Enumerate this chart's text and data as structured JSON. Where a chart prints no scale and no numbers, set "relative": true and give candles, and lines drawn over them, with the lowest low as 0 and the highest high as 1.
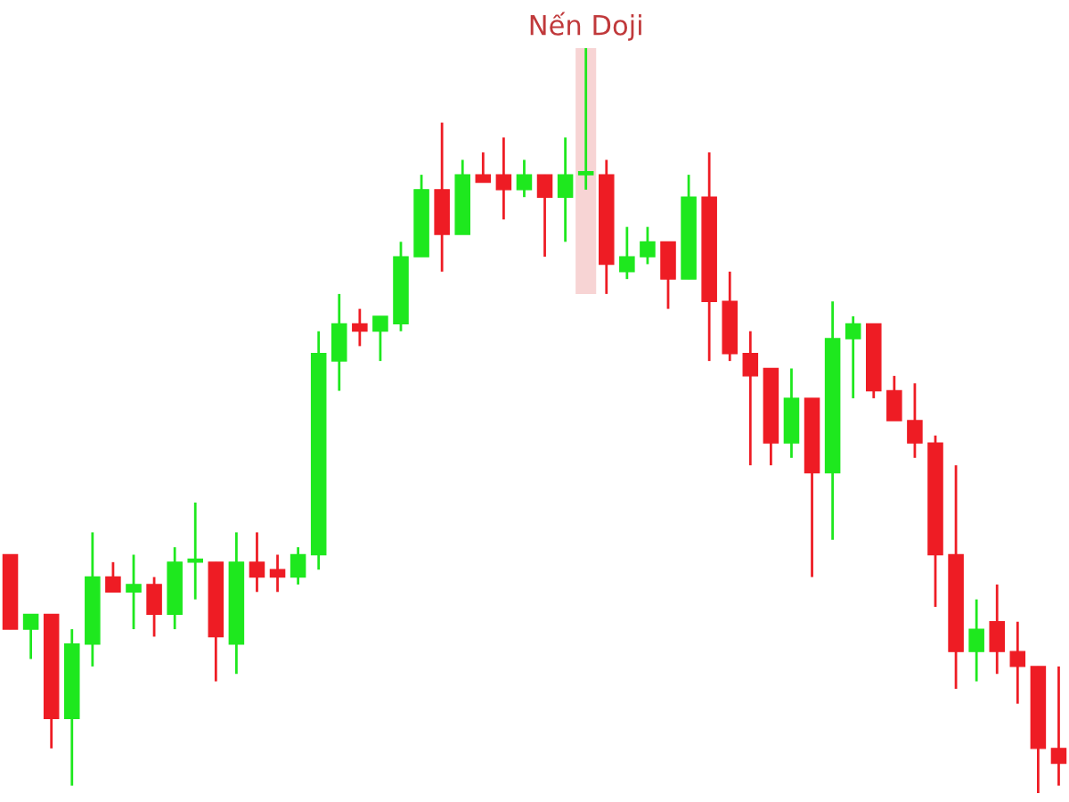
{
  "chart_data": {
    "type": "candlestick",
    "relative": true,
    "categories": [
      null,
      null,
      null,
      null,
      null,
      null,
      null,
      null,
      null,
      null,
      null,
      null,
      null,
      null,
      null,
      null,
      null,
      null,
      null,
      null,
      null,
      null,
      null,
      null,
      null,
      null,
      null,
      null,
      null,
      null,
      null,
      null,
      null,
      null,
      null,
      null,
      null,
      null,
      null,
      null,
      null,
      null,
      null,
      null,
      null,
      null,
      null,
      null,
      null,
      null,
      null,
      null
    ],
    "ohlc": [
      [
        0.32,
        0.32,
        0.22,
        0.22
      ],
      [
        0.22,
        0.24,
        0.18,
        0.24
      ],
      [
        0.24,
        0.24,
        0.06,
        0.1
      ],
      [
        0.1,
        0.22,
        0.01,
        0.2
      ],
      [
        0.2,
        0.35,
        0.17,
        0.29
      ],
      [
        0.29,
        0.31,
        0.27,
        0.27
      ],
      [
        0.27,
        0.32,
        0.22,
        0.28
      ],
      [
        0.28,
        0.29,
        0.21,
        0.24
      ],
      [
        0.24,
        0.33,
        0.22,
        0.31
      ],
      [
        0.31,
        0.39,
        0.26,
        0.31
      ],
      [
        0.31,
        0.31,
        0.15,
        0.21
      ],
      [
        0.2,
        0.35,
        0.16,
        0.31
      ],
      [
        0.31,
        0.35,
        0.27,
        0.29
      ],
      [
        0.3,
        0.32,
        0.27,
        0.29
      ],
      [
        0.29,
        0.33,
        0.28,
        0.32
      ],
      [
        0.32,
        0.62,
        0.3,
        0.59
      ],
      [
        0.58,
        0.67,
        0.54,
        0.63
      ],
      [
        0.63,
        0.65,
        0.6,
        0.62
      ],
      [
        0.62,
        0.64,
        0.58,
        0.64
      ],
      [
        0.63,
        0.74,
        0.62,
        0.72
      ],
      [
        0.72,
        0.83,
        0.72,
        0.81
      ],
      [
        0.81,
        0.9,
        0.7,
        0.75
      ],
      [
        0.75,
        0.85,
        0.75,
        0.83
      ],
      [
        0.83,
        0.86,
        0.82,
        0.82
      ],
      [
        0.83,
        0.88,
        0.77,
        0.81
      ],
      [
        0.81,
        0.85,
        0.8,
        0.83
      ],
      [
        0.83,
        0.83,
        0.72,
        0.8
      ],
      [
        0.8,
        0.88,
        0.74,
        0.83
      ],
      [
        0.83,
        1.0,
        0.81,
        0.83
      ],
      [
        0.83,
        0.85,
        0.67,
        0.71
      ],
      [
        0.7,
        0.76,
        0.69,
        0.72
      ],
      [
        0.72,
        0.76,
        0.71,
        0.74
      ],
      [
        0.74,
        0.74,
        0.65,
        0.69
      ],
      [
        0.69,
        0.83,
        0.69,
        0.8
      ],
      [
        0.8,
        0.86,
        0.58,
        0.66
      ],
      [
        0.66,
        0.7,
        0.58,
        0.59
      ],
      [
        0.59,
        0.62,
        0.44,
        0.56
      ],
      [
        0.57,
        0.57,
        0.44,
        0.47
      ],
      [
        0.47,
        0.57,
        0.45,
        0.53
      ],
      [
        0.53,
        0.53,
        0.29,
        0.43
      ],
      [
        0.43,
        0.66,
        0.34,
        0.61
      ],
      [
        0.61,
        0.64,
        0.53,
        0.63
      ],
      [
        0.63,
        0.63,
        0.53,
        0.54
      ],
      [
        0.54,
        0.56,
        0.5,
        0.5
      ],
      [
        0.5,
        0.55,
        0.45,
        0.47
      ],
      [
        0.47,
        0.48,
        0.25,
        0.32
      ],
      [
        0.32,
        0.44,
        0.14,
        0.19
      ],
      [
        0.19,
        0.26,
        0.15,
        0.22
      ],
      [
        0.23,
        0.28,
        0.16,
        0.19
      ],
      [
        0.19,
        0.23,
        0.12,
        0.17
      ],
      [
        0.17,
        0.17,
        0.0,
        0.06
      ],
      [
        0.06,
        0.17,
        0.01,
        0.04
      ]
    ],
    "colors": [
      "#ee1c24",
      "#1ee81e",
      "#ee1c24",
      "#1ee81e",
      "#1ee81e",
      "#ee1c24",
      "#1ee81e",
      "#ee1c24",
      "#1ee81e",
      "#1ee81e",
      "#ee1c24",
      "#1ee81e",
      "#ee1c24",
      "#ee1c24",
      "#1ee81e",
      "#1ee81e",
      "#1ee81e",
      "#ee1c24",
      "#1ee81e",
      "#1ee81e",
      "#1ee81e",
      "#ee1c24",
      "#1ee81e",
      "#ee1c24",
      "#ee1c24",
      "#1ee81e",
      "#ee1c24",
      "#1ee81e",
      "#1ee81e",
      "#ee1c24",
      "#1ee81e",
      "#1ee81e",
      "#ee1c24",
      "#1ee81e",
      "#ee1c24",
      "#ee1c24",
      "#ee1c24",
      "#ee1c24",
      "#1ee81e",
      "#ee1c24",
      "#1ee81e",
      "#1ee81e",
      "#ee1c24",
      "#ee1c24",
      "#ee1c24",
      "#ee1c24",
      "#ee1c24",
      "#1ee81e",
      "#ee1c24",
      "#ee1c24",
      "#ee1c24",
      "#ee1c24"
    ],
    "annotations": [
      "Nến Doji"
    ],
    "tick_labels": false
  }
}
